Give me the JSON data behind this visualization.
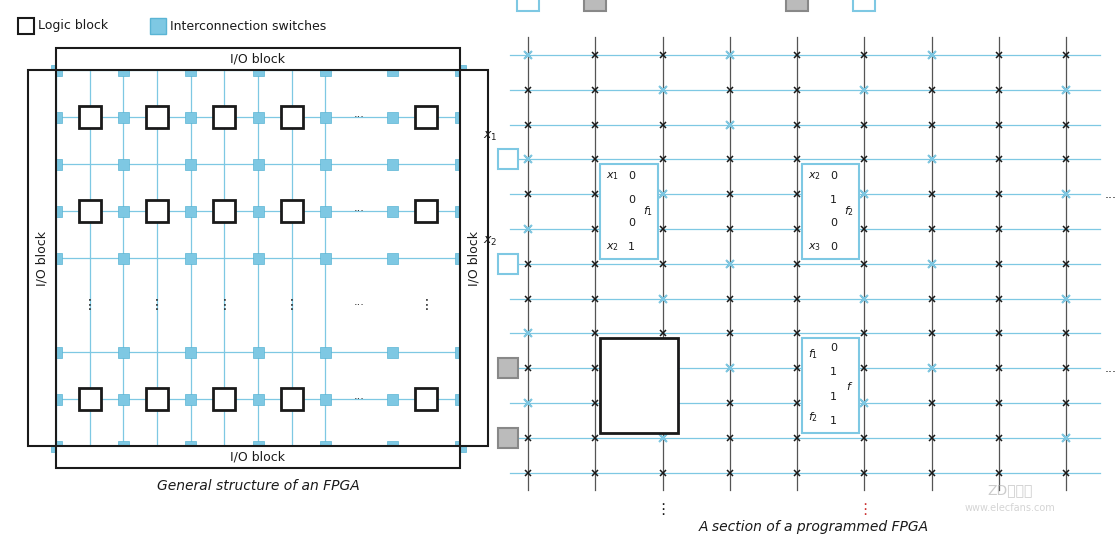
{
  "bg_color": "#ffffff",
  "blue": "#7ec8e3",
  "blue_dark": "#5ab4d4",
  "dark": "#1a1a1a",
  "gray": "#888888",
  "gray_fill": "#bbbbbb",
  "left_title": "General structure of an FPGA",
  "right_title": "A section of a programmed FPGA",
  "legend_logic": "Logic block",
  "legend_switch": "Interconnection switches",
  "figw": 11.18,
  "figh": 5.34,
  "dpi": 100
}
